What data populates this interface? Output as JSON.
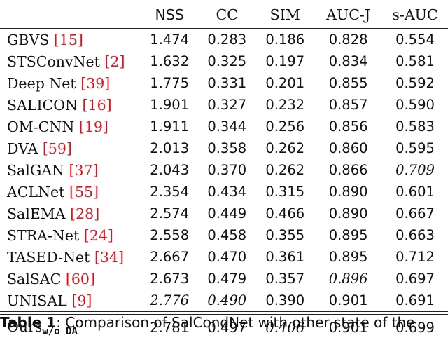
{
  "table": {
    "columns": [
      "NSS",
      "CC",
      "SIM",
      "AUC-J",
      "s-AUC"
    ],
    "rows": [
      {
        "method": "GBVS",
        "ref": "15",
        "nss": "1.474",
        "cc": "0.283",
        "sim": "0.186",
        "aucj": "0.828",
        "sauc": "0.554"
      },
      {
        "method": "STSConvNet",
        "ref": "2",
        "nss": "1.632",
        "cc": "0.325",
        "sim": "0.197",
        "aucj": "0.834",
        "sauc": "0.581"
      },
      {
        "method": "Deep Net",
        "ref": "39",
        "nss": "1.775",
        "cc": "0.331",
        "sim": "0.201",
        "aucj": "0.855",
        "sauc": "0.592"
      },
      {
        "method": "SALICON",
        "ref": "16",
        "nss": "1.901",
        "cc": "0.327",
        "sim": "0.232",
        "aucj": "0.857",
        "sauc": "0.590"
      },
      {
        "method": "OM-CNN",
        "ref": "19",
        "nss": "1.911",
        "cc": "0.344",
        "sim": "0.256",
        "aucj": "0.856",
        "sauc": "0.583"
      },
      {
        "method": "DVA",
        "ref": "59",
        "nss": "2.013",
        "cc": "0.358",
        "sim": "0.262",
        "aucj": "0.860",
        "sauc": "0.595"
      },
      {
        "method": "SalGAN",
        "ref": "37",
        "nss": "2.043",
        "cc": "0.370",
        "sim": "0.262",
        "aucj": "0.866",
        "sauc": "0.709"
      },
      {
        "method": "ACLNet",
        "ref": "55",
        "nss": "2.354",
        "cc": "0.434",
        "sim": "0.315",
        "aucj": "0.890",
        "sauc": "0.601"
      },
      {
        "method": "SalEMA",
        "ref": "28",
        "nss": "2.574",
        "cc": "0.449",
        "sim": "0.466",
        "aucj": "0.890",
        "sauc": "0.667"
      },
      {
        "method": "STRA-Net",
        "ref": "24",
        "nss": "2.558",
        "cc": "0.458",
        "sim": "0.355",
        "aucj": "0.895",
        "sauc": "0.663"
      },
      {
        "method": "TASED-Net",
        "ref": "34",
        "nss": "2.667",
        "cc": "0.470",
        "sim": "0.361",
        "aucj": "0.895",
        "sauc": "0.712"
      },
      {
        "method": "SalSAC",
        "ref": "60",
        "nss": "2.673",
        "cc": "0.479",
        "sim": "0.357",
        "aucj": "0.896",
        "sauc": "0.697"
      },
      {
        "method": "UNISAL",
        "ref": "9",
        "nss": "2.776",
        "cc": "0.490",
        "sim": "0.390",
        "aucj": "0.901",
        "sauc": "0.691"
      }
    ],
    "ours": {
      "method": "Ours",
      "subscript": "w/o DA",
      "nss": "2.781",
      "cc": "0.497",
      "sim": "0.406",
      "aucj": "0.901",
      "sauc": "0.699"
    }
  },
  "caption": {
    "label": "Table 1",
    "text": ": Comparison of SalCondNet with other state of the"
  }
}
